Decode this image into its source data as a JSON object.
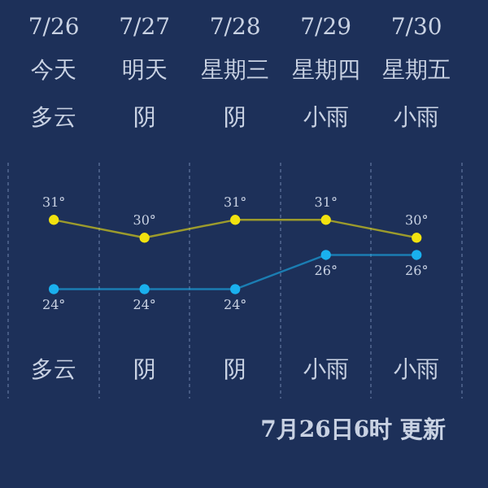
{
  "chart_data": {
    "type": "line",
    "categories": [
      "7/26",
      "7/27",
      "7/28",
      "7/29",
      "7/30"
    ],
    "series": [
      {
        "color": "#f2e20f",
        "values": [
          31,
          30,
          31,
          31,
          30
        ],
        "value_labels": [
          "31°",
          "30°",
          "31°",
          "31°",
          "30°"
        ]
      },
      {
        "color": "#1ab0ee",
        "axis": "y2",
        "values": [
          24,
          24,
          24,
          26,
          26
        ],
        "value_labels": [
          "24°",
          "24°",
          "24°",
          "26°",
          "26°"
        ]
      }
    ],
    "ylim": [
      21,
      34.2
    ],
    "y2lim": [
      17.6,
      31.4
    ],
    "grid": "x",
    "legend": false,
    "marker": "circle",
    "tick_labels": "x",
    "annotations": [
      "今天",
      "明天",
      "星期三",
      "星期四",
      "星期五",
      "多云",
      "阴",
      "阴",
      "小雨",
      "小雨",
      "多云",
      "阴",
      "阴",
      "小雨",
      "小雨",
      "7月26日6时 更新"
    ]
  }
}
